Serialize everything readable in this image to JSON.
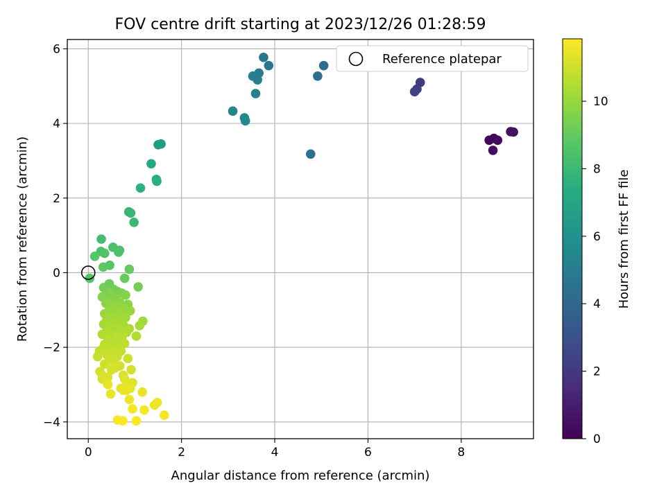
{
  "chart_data": {
    "type": "scatter",
    "title": "FOV centre drift starting at 2023/12/26 01:28:59",
    "xlabel": "Angular distance from reference (arcmin)",
    "ylabel": "Rotation from reference (arcmin)",
    "xlim": [
      -0.45,
      9.55
    ],
    "ylim": [
      -4.45,
      6.25
    ],
    "xticks": [
      0,
      2,
      4,
      6,
      8
    ],
    "yticks": [
      -4,
      -2,
      0,
      2,
      4,
      6
    ],
    "grid": true,
    "colormap": "viridis",
    "colorbar": {
      "label": "Hours from first FF file",
      "range": [
        0,
        11.85
      ],
      "ticks": [
        0,
        2,
        4,
        6,
        8,
        10
      ]
    },
    "legend": {
      "position": "top-right",
      "entries": [
        "Reference platepar"
      ]
    },
    "reference_point": {
      "x": 0,
      "y": 0
    },
    "points": [
      {
        "x": 8.6,
        "y": 3.55,
        "h": 0.1
      },
      {
        "x": 8.7,
        "y": 3.6,
        "h": 0.2
      },
      {
        "x": 8.78,
        "y": 3.55,
        "h": 0.3
      },
      {
        "x": 8.68,
        "y": 3.28,
        "h": 0.4
      },
      {
        "x": 9.06,
        "y": 3.78,
        "h": 0.5
      },
      {
        "x": 9.12,
        "y": 3.77,
        "h": 0.6
      },
      {
        "x": 7.12,
        "y": 5.1,
        "h": 2.0
      },
      {
        "x": 7.05,
        "y": 4.92,
        "h": 2.2
      },
      {
        "x": 7.0,
        "y": 4.85,
        "h": 2.4
      },
      {
        "x": 5.05,
        "y": 5.55,
        "h": 4.3
      },
      {
        "x": 4.92,
        "y": 5.27,
        "h": 4.4
      },
      {
        "x": 4.77,
        "y": 3.18,
        "h": 4.5
      },
      {
        "x": 3.76,
        "y": 5.77,
        "h": 4.8
      },
      {
        "x": 3.87,
        "y": 5.55,
        "h": 4.7
      },
      {
        "x": 3.66,
        "y": 5.35,
        "h": 4.9
      },
      {
        "x": 3.53,
        "y": 5.27,
        "h": 5.0
      },
      {
        "x": 3.63,
        "y": 5.17,
        "h": 5.1
      },
      {
        "x": 3.59,
        "y": 4.8,
        "h": 5.2
      },
      {
        "x": 3.1,
        "y": 4.33,
        "h": 5.4
      },
      {
        "x": 3.35,
        "y": 4.15,
        "h": 5.5
      },
      {
        "x": 3.37,
        "y": 4.07,
        "h": 5.6
      },
      {
        "x": 1.5,
        "y": 3.43,
        "h": 6.5
      },
      {
        "x": 1.56,
        "y": 3.45,
        "h": 6.6
      },
      {
        "x": 1.35,
        "y": 2.92,
        "h": 7.2
      },
      {
        "x": 1.46,
        "y": 2.5,
        "h": 7.4
      },
      {
        "x": 1.47,
        "y": 2.45,
        "h": 7.5
      },
      {
        "x": 1.12,
        "y": 2.27,
        "h": 7.6
      },
      {
        "x": 0.87,
        "y": 1.63,
        "h": 7.8
      },
      {
        "x": 0.91,
        "y": 1.6,
        "h": 7.9
      },
      {
        "x": 0.98,
        "y": 1.35,
        "h": 8.0
      },
      {
        "x": 0.28,
        "y": 0.9,
        "h": 8.2
      },
      {
        "x": 0.53,
        "y": 0.68,
        "h": 8.4
      },
      {
        "x": 0.27,
        "y": 0.57,
        "h": 8.4
      },
      {
        "x": 0.67,
        "y": 0.6,
        "h": 8.3
      },
      {
        "x": 0.65,
        "y": 0.55,
        "h": 8.5
      },
      {
        "x": 0.35,
        "y": 0.52,
        "h": 8.6
      },
      {
        "x": 0.14,
        "y": 0.44,
        "h": 8.7
      },
      {
        "x": 0.46,
        "y": 0.2,
        "h": 8.8
      },
      {
        "x": 0.32,
        "y": 0.15,
        "h": 8.9
      },
      {
        "x": 0.88,
        "y": 0.09,
        "h": 9.0
      },
      {
        "x": 0.03,
        "y": -0.15,
        "h": 8.6
      },
      {
        "x": 0.78,
        "y": -0.15,
        "h": 9.1
      },
      {
        "x": 0.45,
        "y": -0.3,
        "h": 9.2
      },
      {
        "x": 1.07,
        "y": -0.38,
        "h": 9.3
      },
      {
        "x": 0.33,
        "y": -0.4,
        "h": 9.3
      },
      {
        "x": 0.55,
        "y": -0.45,
        "h": 9.4
      },
      {
        "x": 0.62,
        "y": -0.5,
        "h": 9.4
      },
      {
        "x": 0.41,
        "y": -0.55,
        "h": 9.5
      },
      {
        "x": 0.72,
        "y": -0.55,
        "h": 9.5
      },
      {
        "x": 0.5,
        "y": -0.6,
        "h": 9.6
      },
      {
        "x": 0.8,
        "y": -0.6,
        "h": 9.6
      },
      {
        "x": 0.3,
        "y": -0.65,
        "h": 9.6
      },
      {
        "x": 0.58,
        "y": -0.7,
        "h": 9.7
      },
      {
        "x": 0.44,
        "y": -0.75,
        "h": 9.7
      },
      {
        "x": 0.68,
        "y": -0.8,
        "h": 9.8
      },
      {
        "x": 0.38,
        "y": -0.82,
        "h": 9.8
      },
      {
        "x": 0.85,
        "y": -0.85,
        "h": 9.8
      },
      {
        "x": 0.52,
        "y": -0.88,
        "h": 9.9
      },
      {
        "x": 0.62,
        "y": -0.92,
        "h": 9.9
      },
      {
        "x": 0.75,
        "y": -0.95,
        "h": 9.9
      },
      {
        "x": 0.45,
        "y": -1.0,
        "h": 10.0
      },
      {
        "x": 0.9,
        "y": -1.02,
        "h": 10.0
      },
      {
        "x": 0.55,
        "y": -1.05,
        "h": 10.0
      },
      {
        "x": 0.35,
        "y": -1.1,
        "h": 10.1
      },
      {
        "x": 0.7,
        "y": -1.1,
        "h": 10.1
      },
      {
        "x": 0.6,
        "y": -1.15,
        "h": 10.1
      },
      {
        "x": 0.48,
        "y": -1.2,
        "h": 10.2
      },
      {
        "x": 0.8,
        "y": -1.2,
        "h": 10.2
      },
      {
        "x": 0.4,
        "y": -1.25,
        "h": 10.2
      },
      {
        "x": 1.17,
        "y": -1.3,
        "h": 10.2
      },
      {
        "x": 0.65,
        "y": -1.3,
        "h": 10.3
      },
      {
        "x": 0.55,
        "y": -1.35,
        "h": 10.3
      },
      {
        "x": 0.33,
        "y": -1.38,
        "h": 10.3
      },
      {
        "x": 0.75,
        "y": -1.4,
        "h": 10.3
      },
      {
        "x": 1.1,
        "y": -1.42,
        "h": 10.3
      },
      {
        "x": 0.45,
        "y": -1.45,
        "h": 10.4
      },
      {
        "x": 0.88,
        "y": -1.5,
        "h": 10.4
      },
      {
        "x": 0.58,
        "y": -1.52,
        "h": 10.4
      },
      {
        "x": 0.68,
        "y": -1.55,
        "h": 10.4
      },
      {
        "x": 0.38,
        "y": -1.6,
        "h": 10.5
      },
      {
        "x": 0.82,
        "y": -1.6,
        "h": 10.5
      },
      {
        "x": 0.5,
        "y": -1.65,
        "h": 10.5
      },
      {
        "x": 0.3,
        "y": -1.65,
        "h": 10.5
      },
      {
        "x": 1.03,
        "y": -1.7,
        "h": 10.5
      },
      {
        "x": 0.62,
        "y": -1.72,
        "h": 10.6
      },
      {
        "x": 0.72,
        "y": -1.75,
        "h": 10.6
      },
      {
        "x": 0.42,
        "y": -1.8,
        "h": 10.6
      },
      {
        "x": 0.55,
        "y": -1.85,
        "h": 10.6
      },
      {
        "x": 0.78,
        "y": -1.9,
        "h": 10.7
      },
      {
        "x": 0.35,
        "y": -1.92,
        "h": 10.7
      },
      {
        "x": 0.65,
        "y": -1.95,
        "h": 10.7
      },
      {
        "x": 0.48,
        "y": -2.0,
        "h": 10.7
      },
      {
        "x": 0.3,
        "y": -2.05,
        "h": 10.8
      },
      {
        "x": 0.6,
        "y": -2.05,
        "h": 10.8
      },
      {
        "x": 0.24,
        "y": -2.1,
        "h": 10.8
      },
      {
        "x": 0.7,
        "y": -2.1,
        "h": 10.8
      },
      {
        "x": 0.52,
        "y": -2.15,
        "h": 10.9
      },
      {
        "x": 0.4,
        "y": -2.2,
        "h": 10.9
      },
      {
        "x": 0.2,
        "y": -2.25,
        "h": 10.9
      },
      {
        "x": 0.62,
        "y": -2.25,
        "h": 10.9
      },
      {
        "x": 0.85,
        "y": -2.3,
        "h": 11.0
      },
      {
        "x": 0.45,
        "y": -2.35,
        "h": 11.0
      },
      {
        "x": 0.55,
        "y": -2.4,
        "h": 11.0
      },
      {
        "x": 0.35,
        "y": -2.45,
        "h": 11.0
      },
      {
        "x": 0.68,
        "y": -2.5,
        "h": 11.1
      },
      {
        "x": 0.58,
        "y": -2.55,
        "h": 11.1
      },
      {
        "x": 0.92,
        "y": -2.6,
        "h": 11.1
      },
      {
        "x": 0.5,
        "y": -2.6,
        "h": 11.1
      },
      {
        "x": 0.25,
        "y": -2.65,
        "h": 11.1
      },
      {
        "x": 0.3,
        "y": -2.75,
        "h": 11.2
      },
      {
        "x": 0.75,
        "y": -2.75,
        "h": 11.2
      },
      {
        "x": 0.42,
        "y": -2.8,
        "h": 11.2
      },
      {
        "x": 0.3,
        "y": -2.85,
        "h": 11.2
      },
      {
        "x": 0.78,
        "y": -2.85,
        "h": 11.3
      },
      {
        "x": 0.38,
        "y": -2.9,
        "h": 11.3
      },
      {
        "x": 0.85,
        "y": -2.95,
        "h": 11.3
      },
      {
        "x": 0.95,
        "y": -2.95,
        "h": 11.3
      },
      {
        "x": 0.42,
        "y": -3.0,
        "h": 11.4
      },
      {
        "x": 0.8,
        "y": -3.05,
        "h": 11.4
      },
      {
        "x": 0.7,
        "y": -3.1,
        "h": 11.4
      },
      {
        "x": 0.9,
        "y": -3.1,
        "h": 11.4
      },
      {
        "x": 0.75,
        "y": -3.15,
        "h": 11.5
      },
      {
        "x": 0.82,
        "y": -3.15,
        "h": 11.5
      },
      {
        "x": 1.16,
        "y": -3.2,
        "h": 11.5
      },
      {
        "x": 0.48,
        "y": -3.25,
        "h": 11.5
      },
      {
        "x": 0.88,
        "y": -3.4,
        "h": 11.6
      },
      {
        "x": 1.48,
        "y": -3.48,
        "h": 11.6
      },
      {
        "x": 1.42,
        "y": -3.55,
        "h": 11.6
      },
      {
        "x": 0.95,
        "y": -3.65,
        "h": 11.7
      },
      {
        "x": 1.2,
        "y": -3.68,
        "h": 11.7
      },
      {
        "x": 1.63,
        "y": -3.82,
        "h": 11.7
      },
      {
        "x": 0.63,
        "y": -3.95,
        "h": 11.8
      },
      {
        "x": 0.74,
        "y": -3.97,
        "h": 11.8
      },
      {
        "x": 1.03,
        "y": -3.97,
        "h": 11.8
      }
    ]
  }
}
